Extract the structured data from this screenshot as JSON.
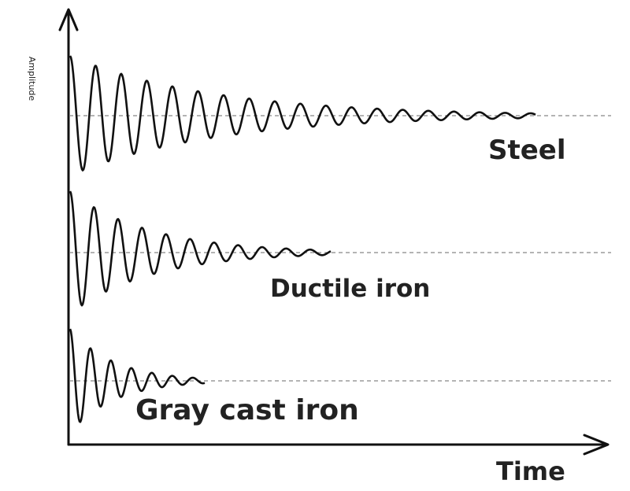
{
  "axes": {
    "y_label": "Amplitude",
    "x_label": "Time"
  },
  "curves": [
    {
      "label": "Steel"
    },
    {
      "label": "Ductile iron"
    },
    {
      "label": "Gray cast iron"
    }
  ]
}
